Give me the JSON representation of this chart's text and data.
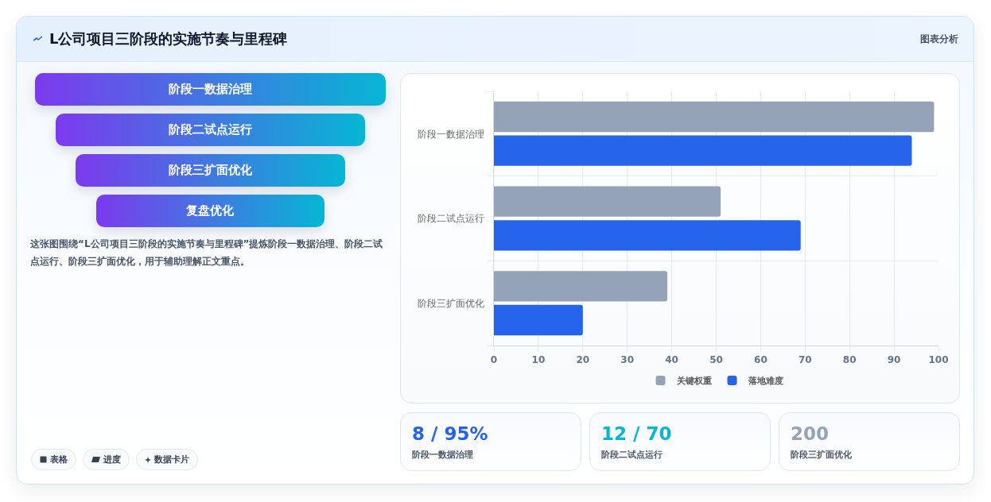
{
  "chart_data": [
    {
      "type": "other",
      "title": "L公司项目三阶段的实施节奏与里程碑",
      "categories": [
        "阶段一数据治理",
        "阶段二试点运行",
        "阶段三扩面优化",
        "复盘优化"
      ],
      "annotations": [
        "图表分析",
        "这张图围绕“L公司项目三阶段的实施节奏与里程碑”提炼阶段一数据治理、阶段二试点运行、阶段三扩面优化，用于辅助理解正文重点。",
        "表格",
        "进度",
        "数据卡片"
      ]
    },
    {
      "type": "bar",
      "orientation": "horizontal",
      "categories": [
        "阶段一数据治理",
        "阶段二试点运行",
        "阶段三扩面优化"
      ],
      "series": [
        {
          "name": "关键权重",
          "color": "#94a3b8",
          "values": [
            99,
            51,
            39
          ]
        },
        {
          "name": "落地难度",
          "color": "#2563eb",
          "values": [
            94,
            69,
            20
          ]
        }
      ],
      "xlim": [
        0,
        100
      ],
      "xticks": [
        0,
        10,
        20,
        30,
        40,
        50,
        60,
        70,
        80,
        90,
        100
      ],
      "grid": true,
      "legend": "bottom"
    },
    {
      "type": "other",
      "categories": [
        "阶段一数据治理",
        "阶段二试点运行",
        "阶段三扩面优化"
      ],
      "value_labels": [
        "8 / 95%",
        "12 / 70",
        "200"
      ]
    }
  ]
}
